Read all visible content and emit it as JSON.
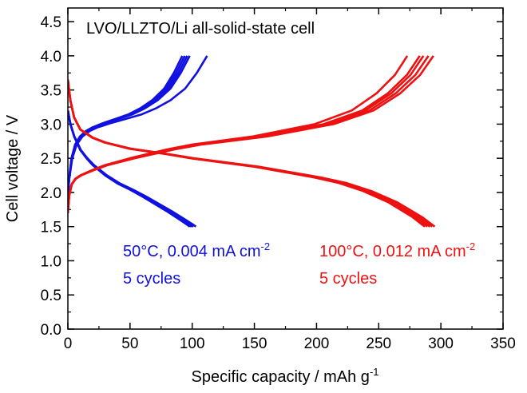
{
  "chart_data": {
    "type": "line",
    "title": "LVO/LLZTO/Li all-solid-state cell",
    "xlabel": {
      "main": "Specific capacity / mAh g",
      "sup": "-1"
    },
    "ylabel": "Cell voltage / V",
    "xlim": [
      0,
      350
    ],
    "ylim": [
      0,
      4.7
    ],
    "xticks": [
      "0",
      "50",
      "100",
      "150",
      "200",
      "250",
      "300",
      "350"
    ],
    "yticks": [
      "0.0",
      "0.5",
      "1.0",
      "1.5",
      "2.0",
      "2.5",
      "3.0",
      "3.5",
      "4.0",
      "4.5"
    ],
    "grid": false,
    "annotations": [
      {
        "id": "blue-condition",
        "text": "50°C, 0.004 mA cm",
        "sup": "-2",
        "color": "#1010e0"
      },
      {
        "id": "blue-cycles",
        "text": "5 cycles",
        "color": "#1010e0"
      },
      {
        "id": "red-condition",
        "text": "100°C, 0.012 mA cm",
        "sup": "-2",
        "color": "#ee1111"
      },
      {
        "id": "red-cycles",
        "text": "5 cycles",
        "color": "#ee1111"
      }
    ],
    "series": [
      {
        "group": "blue",
        "color": "#1010e0",
        "cycles": 5,
        "discharge": {
          "x": [
            0,
            2,
            5,
            10,
            15,
            20,
            30,
            40,
            50,
            60,
            70,
            80,
            90,
            95,
            98
          ],
          "y": [
            3.2,
            3.0,
            2.82,
            2.62,
            2.5,
            2.4,
            2.25,
            2.13,
            2.04,
            1.94,
            1.83,
            1.72,
            1.6,
            1.54,
            1.5
          ]
        },
        "discharge_end": [
          98,
          99,
          100,
          101,
          103
        ],
        "charge": {
          "x": [
            0,
            1,
            3,
            6,
            10,
            15,
            20,
            30,
            40,
            50,
            60,
            70,
            80,
            88,
            95
          ],
          "y": [
            1.95,
            2.2,
            2.5,
            2.7,
            2.82,
            2.9,
            2.95,
            3.02,
            3.08,
            3.14,
            3.23,
            3.35,
            3.52,
            3.75,
            4.0
          ]
        },
        "charge_end": [
          92,
          94,
          96,
          98,
          112
        ]
      },
      {
        "group": "red",
        "color": "#ee1111",
        "cycles": 5,
        "discharge": {
          "x": [
            0,
            2,
            5,
            10,
            20,
            30,
            50,
            80,
            100,
            150,
            200,
            220,
            240,
            260,
            280,
            290
          ],
          "y": [
            3.65,
            3.35,
            3.1,
            2.92,
            2.8,
            2.73,
            2.64,
            2.56,
            2.5,
            2.38,
            2.22,
            2.14,
            2.02,
            1.86,
            1.64,
            1.5
          ]
        },
        "discharge_end": [
          287,
          289,
          291,
          293,
          295
        ],
        "charge": {
          "x": [
            0,
            1,
            3,
            6,
            10,
            20,
            30,
            50,
            80,
            100,
            150,
            200,
            230,
            250,
            265,
            275
          ],
          "y": [
            1.7,
            1.95,
            2.12,
            2.2,
            2.25,
            2.33,
            2.4,
            2.5,
            2.63,
            2.7,
            2.82,
            3.0,
            3.2,
            3.45,
            3.72,
            4.0
          ]
        },
        "charge_end": [
          273,
          283,
          286,
          290,
          294
        ]
      }
    ]
  }
}
